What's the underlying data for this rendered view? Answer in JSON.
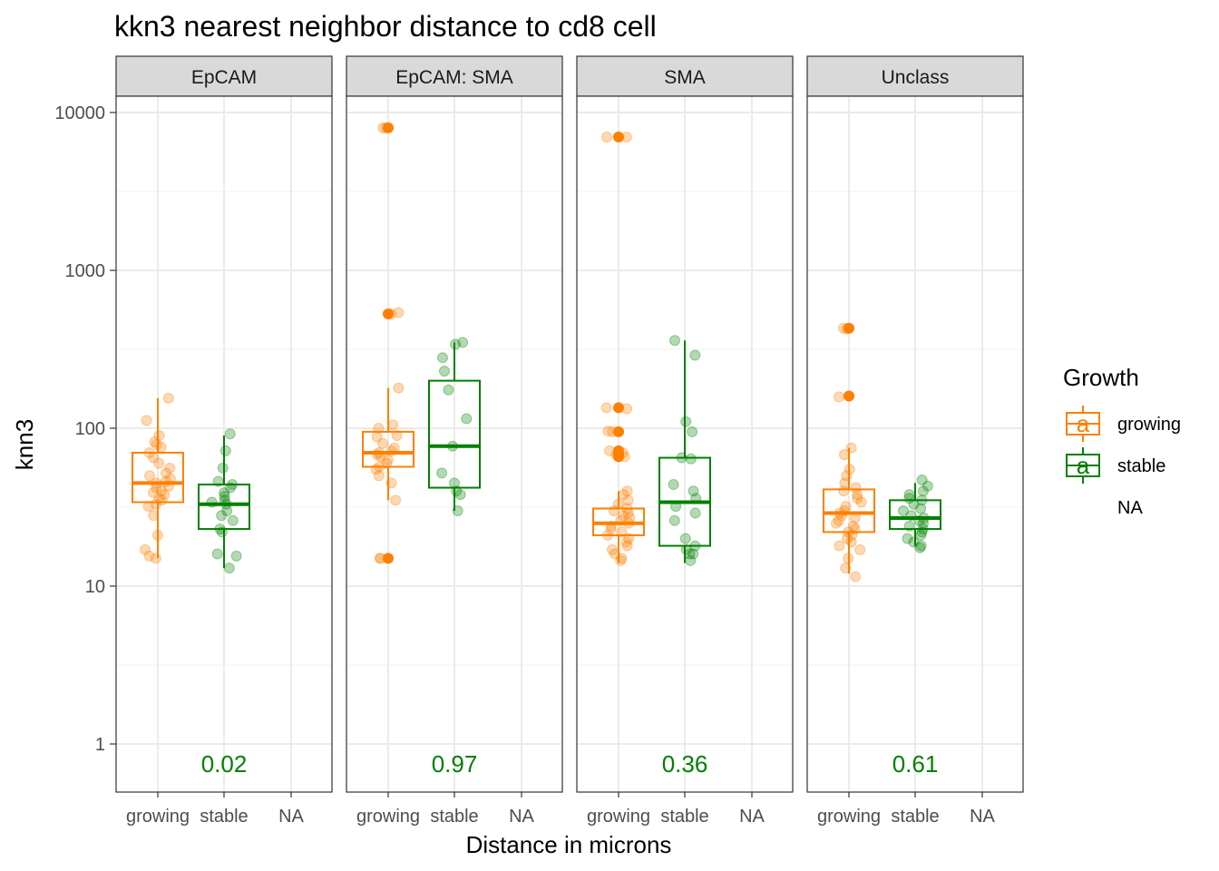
{
  "chart_data": {
    "type": "box",
    "title": "kkn3 nearest neighbor distance to cd8 cell",
    "xlabel": "Distance in microns",
    "ylabel": "knn3",
    "y_scale": "log10",
    "ylim": [
      0.5,
      20000
    ],
    "y_ticks": [
      1,
      10,
      100,
      1000,
      10000
    ],
    "y_tick_labels": [
      "1",
      "10",
      "100",
      "1000",
      "10000"
    ],
    "categories": [
      "growing",
      "stable",
      "NA"
    ],
    "colors": {
      "growing": "#ff7f00",
      "stable": "#008000",
      "pval": "#008000"
    },
    "legend": {
      "title": "Growth",
      "position": "right",
      "items": [
        {
          "label": "growing",
          "key": "growing",
          "symbol": "a"
        },
        {
          "label": "stable",
          "key": "stable",
          "symbol": "a"
        },
        {
          "label": "NA",
          "key": "NA",
          "symbol": ""
        }
      ]
    },
    "panels": [
      {
        "name": "EpCAM",
        "pvalue": "0.02",
        "series": [
          {
            "group": "growing",
            "q1": 34,
            "median": 45,
            "q3": 70,
            "whisker_low": 15,
            "whisker_high": 155,
            "outliers": [],
            "points": [
              155,
              112,
              90,
              82,
              79,
              76,
              70,
              65,
              60,
              56,
              52,
              50,
              48,
              46,
              45,
              43,
              42,
              40,
              39,
              38,
              36,
              35,
              33,
              32,
              28,
              21,
              17,
              15.5,
              15
            ]
          },
          {
            "group": "stable",
            "q1": 23,
            "median": 33,
            "q3": 44,
            "whisker_low": 13,
            "whisker_high": 90,
            "outliers": [],
            "points": [
              92,
              72,
              56,
              46,
              44,
              42,
              39,
              37,
              35,
              34,
              33,
              30,
              28,
              26,
              23,
              22,
              16,
              15.5,
              13
            ]
          },
          {
            "group": "NA",
            "points": []
          }
        ]
      },
      {
        "name": "EpCAM: SMA",
        "pvalue": "0.97",
        "series": [
          {
            "group": "growing",
            "q1": 57,
            "median": 70,
            "q3": 95,
            "whisker_low": 35,
            "whisker_high": 180,
            "outliers": [
              8000,
              530,
              15
            ],
            "points": [
              8000,
              8000,
              540,
              530,
              180,
              105,
              100,
              90,
              88,
              80,
              75,
              72,
              70,
              68,
              66,
              63,
              60,
              57,
              55,
              50,
              45,
              35,
              15,
              15
            ]
          },
          {
            "group": "stable",
            "q1": 42,
            "median": 77,
            "q3": 200,
            "whisker_low": 30,
            "whisker_high": 350,
            "outliers": [],
            "points": [
              350,
              340,
              280,
              230,
              175,
              115,
              77,
              52,
              45,
              40,
              38,
              30
            ]
          },
          {
            "group": "NA",
            "points": []
          }
        ]
      },
      {
        "name": "SMA",
        "pvalue": "0.36",
        "series": [
          {
            "group": "growing",
            "q1": 21,
            "median": 25,
            "q3": 31,
            "whisker_low": 14,
            "whisker_high": 40,
            "outliers": [
              7000,
              135,
              95,
              72,
              68,
              66
            ],
            "points": [
              7000,
              7000,
              135,
              133,
              96,
              95,
              72,
              70,
              68,
              66,
              40,
              38,
              35,
              33,
              31,
              30,
              29,
              28,
              27,
              26,
              25,
              24,
              23,
              22,
              21,
              20,
              19,
              18,
              17,
              16,
              15,
              14.5
            ]
          },
          {
            "group": "stable",
            "q1": 18,
            "median": 34,
            "q3": 65,
            "whisker_low": 14,
            "whisker_high": 360,
            "outliers": [],
            "points": [
              360,
              290,
              110,
              95,
              65,
              64,
              44,
              40,
              36,
              32,
              29,
              26,
              20,
              18,
              17,
              16,
              16,
              14.5
            ]
          },
          {
            "group": "NA",
            "points": []
          }
        ]
      },
      {
        "name": "Unclass",
        "pvalue": "0.61",
        "series": [
          {
            "group": "growing",
            "q1": 22,
            "median": 29,
            "q3": 41,
            "whisker_low": 12,
            "whisker_high": 75,
            "outliers": [
              430,
              160
            ],
            "points": [
              430,
              425,
              160,
              158,
              75,
              68,
              55,
              50,
              45,
              42,
              40,
              38,
              36,
              34,
              32,
              30,
              29,
              28,
              27,
              26,
              25,
              24,
              23,
              22,
              21,
              20,
              19,
              18,
              17,
              15,
              13,
              11.5
            ]
          },
          {
            "group": "stable",
            "q1": 23,
            "median": 27,
            "q3": 35,
            "whisker_low": 18,
            "whisker_high": 45,
            "outliers": [],
            "points": [
              47,
              43,
              40,
              38,
              36,
              35,
              33,
              31,
              30,
              28,
              27,
              26,
              25,
              24,
              23,
              22,
              21,
              20,
              19,
              18,
              17.5
            ]
          },
          {
            "group": "NA",
            "points": []
          }
        ]
      }
    ]
  }
}
